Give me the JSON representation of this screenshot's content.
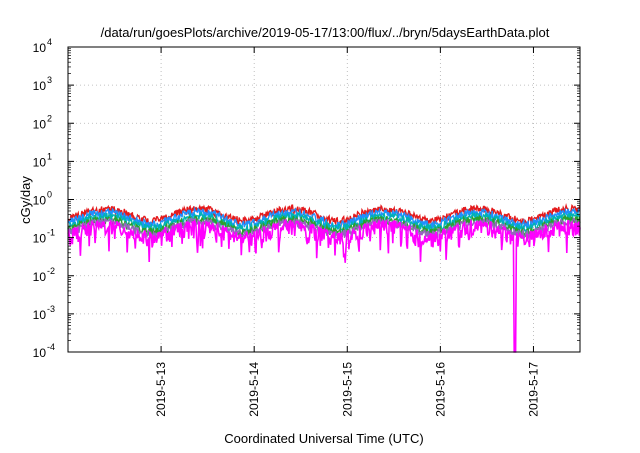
{
  "chart_data": {
    "type": "line",
    "title": "/data/run/goesPlots/archive/2019-05-17/13:00/flux/../bryn/5daysEarthData.plot",
    "xlabel": "Coordinated Universal Time (UTC)",
    "ylabel": "cGy/day",
    "y_scale": "log",
    "ylim_exponents": [
      -4,
      4
    ],
    "y_tick_base": "10",
    "y_tick_exponents": [
      "-4",
      "-3",
      "-2",
      "-1",
      "0",
      "1",
      "2",
      "3",
      "4"
    ],
    "xlim_days": [
      0,
      5.5
    ],
    "x_tick_labels": [
      "2019-5-13",
      "2019-5-14",
      "2019-5-15",
      "2019-5-16",
      "2019-5-17"
    ],
    "x_tick_positions_days": [
      1,
      2,
      3,
      4,
      5
    ],
    "grid": true,
    "legend": "none",
    "series_colors": [
      "#e41a1c",
      "#1e90ff",
      "#00b3b3",
      "#2ca02c",
      "#9467bd",
      "#ff00ff"
    ],
    "series_levels": [
      0.42,
      0.34,
      0.27,
      0.22,
      0.19,
      0.15
    ],
    "dropout": {
      "day": 4.8,
      "min": 0.0001
    }
  }
}
